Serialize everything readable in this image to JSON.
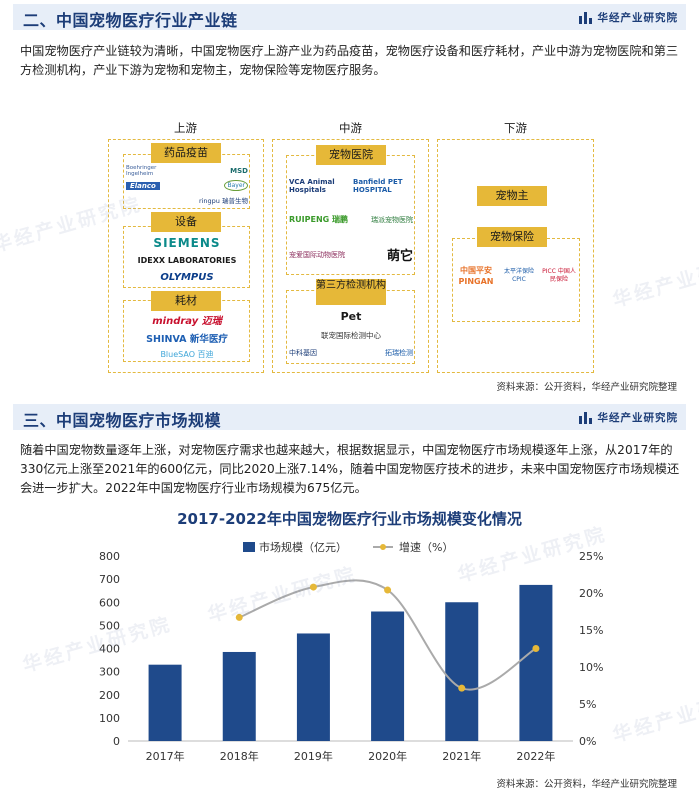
{
  "brand": {
    "name": "华经产业研究院"
  },
  "section2": {
    "title": "二、中国宠物医疗行业产业链",
    "paragraph": "中国宠物医疗产业链较为清晰，中国宠物医疗上游产业为药品疫苗，宠物医疗设备和医疗耗材，产业中游为宠物医院和第三方检测机构，产业下游为宠物和宠物主，宠物保险等宠物医疗服务。",
    "upstream": {
      "label": "上游",
      "groups": [
        {
          "label": "药品疫苗",
          "logos": [
            "MSD",
            "Boehringer Ingelheim",
            "Bayer",
            "Elanco",
            "ringpu 瑞普生物"
          ]
        },
        {
          "label": "设备",
          "logos": [
            "SIEMENS",
            "IDEXX LABORATORIES",
            "OLYMPUS"
          ]
        },
        {
          "label": "耗材",
          "logos": [
            "mindray 迈瑞",
            "SHINVA 新华医疗",
            "BlueSAO 百迪"
          ]
        }
      ]
    },
    "midstream": {
      "label": "中游",
      "groups": [
        {
          "label": "宠物医院",
          "logos": [
            "VCA Animal Hospitals",
            "Banfield PET HOSPITAL",
            "RUIPENG 瑞鹏",
            "瑞派宠物医院",
            "宠爱国际动物医院",
            "萌它"
          ]
        },
        {
          "label": "第三方检测机构",
          "logos": [
            "Pet",
            "联宠国际检测中心",
            "中科基因",
            "拓瑞检测"
          ]
        }
      ]
    },
    "downstream": {
      "label": "下游",
      "owner": "宠物主",
      "insurance": {
        "label": "宠物保险",
        "logos": [
          "中国平安 PINGAN",
          "太平洋保险 CPIC",
          "PICC 中国人民保险"
        ]
      }
    },
    "source": "资料来源：公开资料，华经产业研究院整理"
  },
  "section3": {
    "title": "三、中国宠物医疗市场规模",
    "paragraph": "随着中国宠物数量逐年上涨，对宠物医疗需求也越来越大，根据数据显示，中国宠物医疗市场规模逐年上涨，从2017年的330亿元上涨至2021年的600亿元，同比2020上涨7.14%，随着中国宠物医疗技术的进步，未来中国宠物医疗市场规模还会进一步扩大。2022年中国宠物医疗行业市场规模为675亿元。",
    "source": "资料来源：公开资料，华经产业研究院整理"
  },
  "chart_data": {
    "type": "bar",
    "title": "2017-2022年中国宠物医疗行业市场规模变化情况",
    "categories": [
      "2017年",
      "2018年",
      "2019年",
      "2020年",
      "2021年",
      "2022年"
    ],
    "series": [
      {
        "name": "市场规模（亿元）",
        "type": "bar",
        "axis": "left",
        "color": "#1f4a8b",
        "values": [
          330,
          385,
          465,
          560,
          600,
          675
        ]
      },
      {
        "name": "增速（%）",
        "type": "line",
        "axis": "right",
        "color": "#aaaaaa",
        "marker_color": "#e6b838",
        "values": [
          null,
          16.7,
          20.8,
          20.4,
          7.14,
          12.5
        ]
      }
    ],
    "ylim_left": [
      0,
      800
    ],
    "yticks_left": [
      "0",
      "100",
      "200",
      "300",
      "400",
      "500",
      "600",
      "700",
      "800"
    ],
    "ylim_right": [
      0,
      25
    ],
    "yticks_right": [
      "0%",
      "5%",
      "10%",
      "15%",
      "20%",
      "25%"
    ],
    "legend": "top",
    "grid": false
  }
}
